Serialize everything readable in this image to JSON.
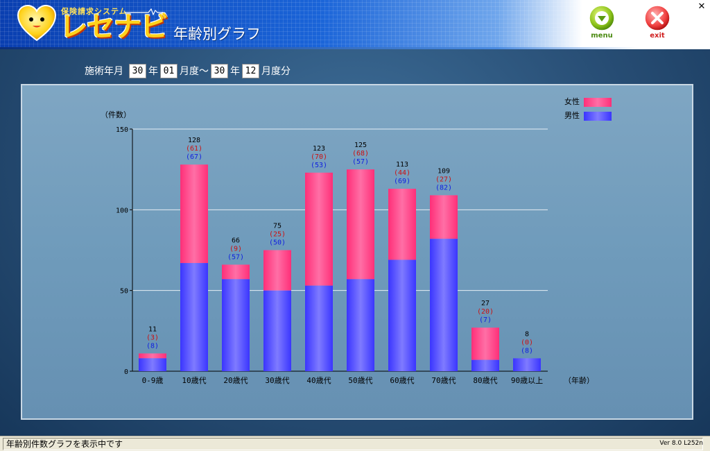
{
  "app": {
    "logo_subtitle": "保険請求システム",
    "logo_name": "レセナビ",
    "page_title": "年齢別グラフ",
    "menu_label": "menu",
    "exit_label": "exit",
    "close_glyph": "✕"
  },
  "filter": {
    "label": "施術年月",
    "from_year": "30",
    "year_label_1": "年",
    "from_month": "01",
    "month_label_1": "月度〜",
    "to_year": "30",
    "year_label_2": "年",
    "to_month": "12",
    "month_label_2": "月度分"
  },
  "status": {
    "message": "年齢別件数グラフを表示中です",
    "version": "Ver 8.0 L252n"
  },
  "colors": {
    "female": "#ff2f78",
    "male": "#3a35ff",
    "female_text": "#cc1010",
    "male_text": "#1020e0"
  },
  "chart_data": {
    "type": "bar",
    "stacked": true,
    "ylabel": "（件数）",
    "xlabel": "（年齢）",
    "ylim": [
      0,
      150
    ],
    "yticks": [
      0,
      50,
      100,
      150
    ],
    "grid": true,
    "legend_position": "top-right",
    "categories": [
      "0-9歳",
      "10歳代",
      "20歳代",
      "30歳代",
      "40歳代",
      "50歳代",
      "60歳代",
      "70歳代",
      "80歳代",
      "90歳以上"
    ],
    "totals": [
      11,
      128,
      66,
      75,
      123,
      125,
      113,
      109,
      27,
      8
    ],
    "series": [
      {
        "name": "男性",
        "values": [
          8,
          67,
          57,
          50,
          53,
          57,
          69,
          82,
          7,
          8
        ]
      },
      {
        "name": "女性",
        "values": [
          3,
          61,
          9,
          25,
          70,
          68,
          44,
          27,
          20,
          0
        ]
      }
    ]
  }
}
